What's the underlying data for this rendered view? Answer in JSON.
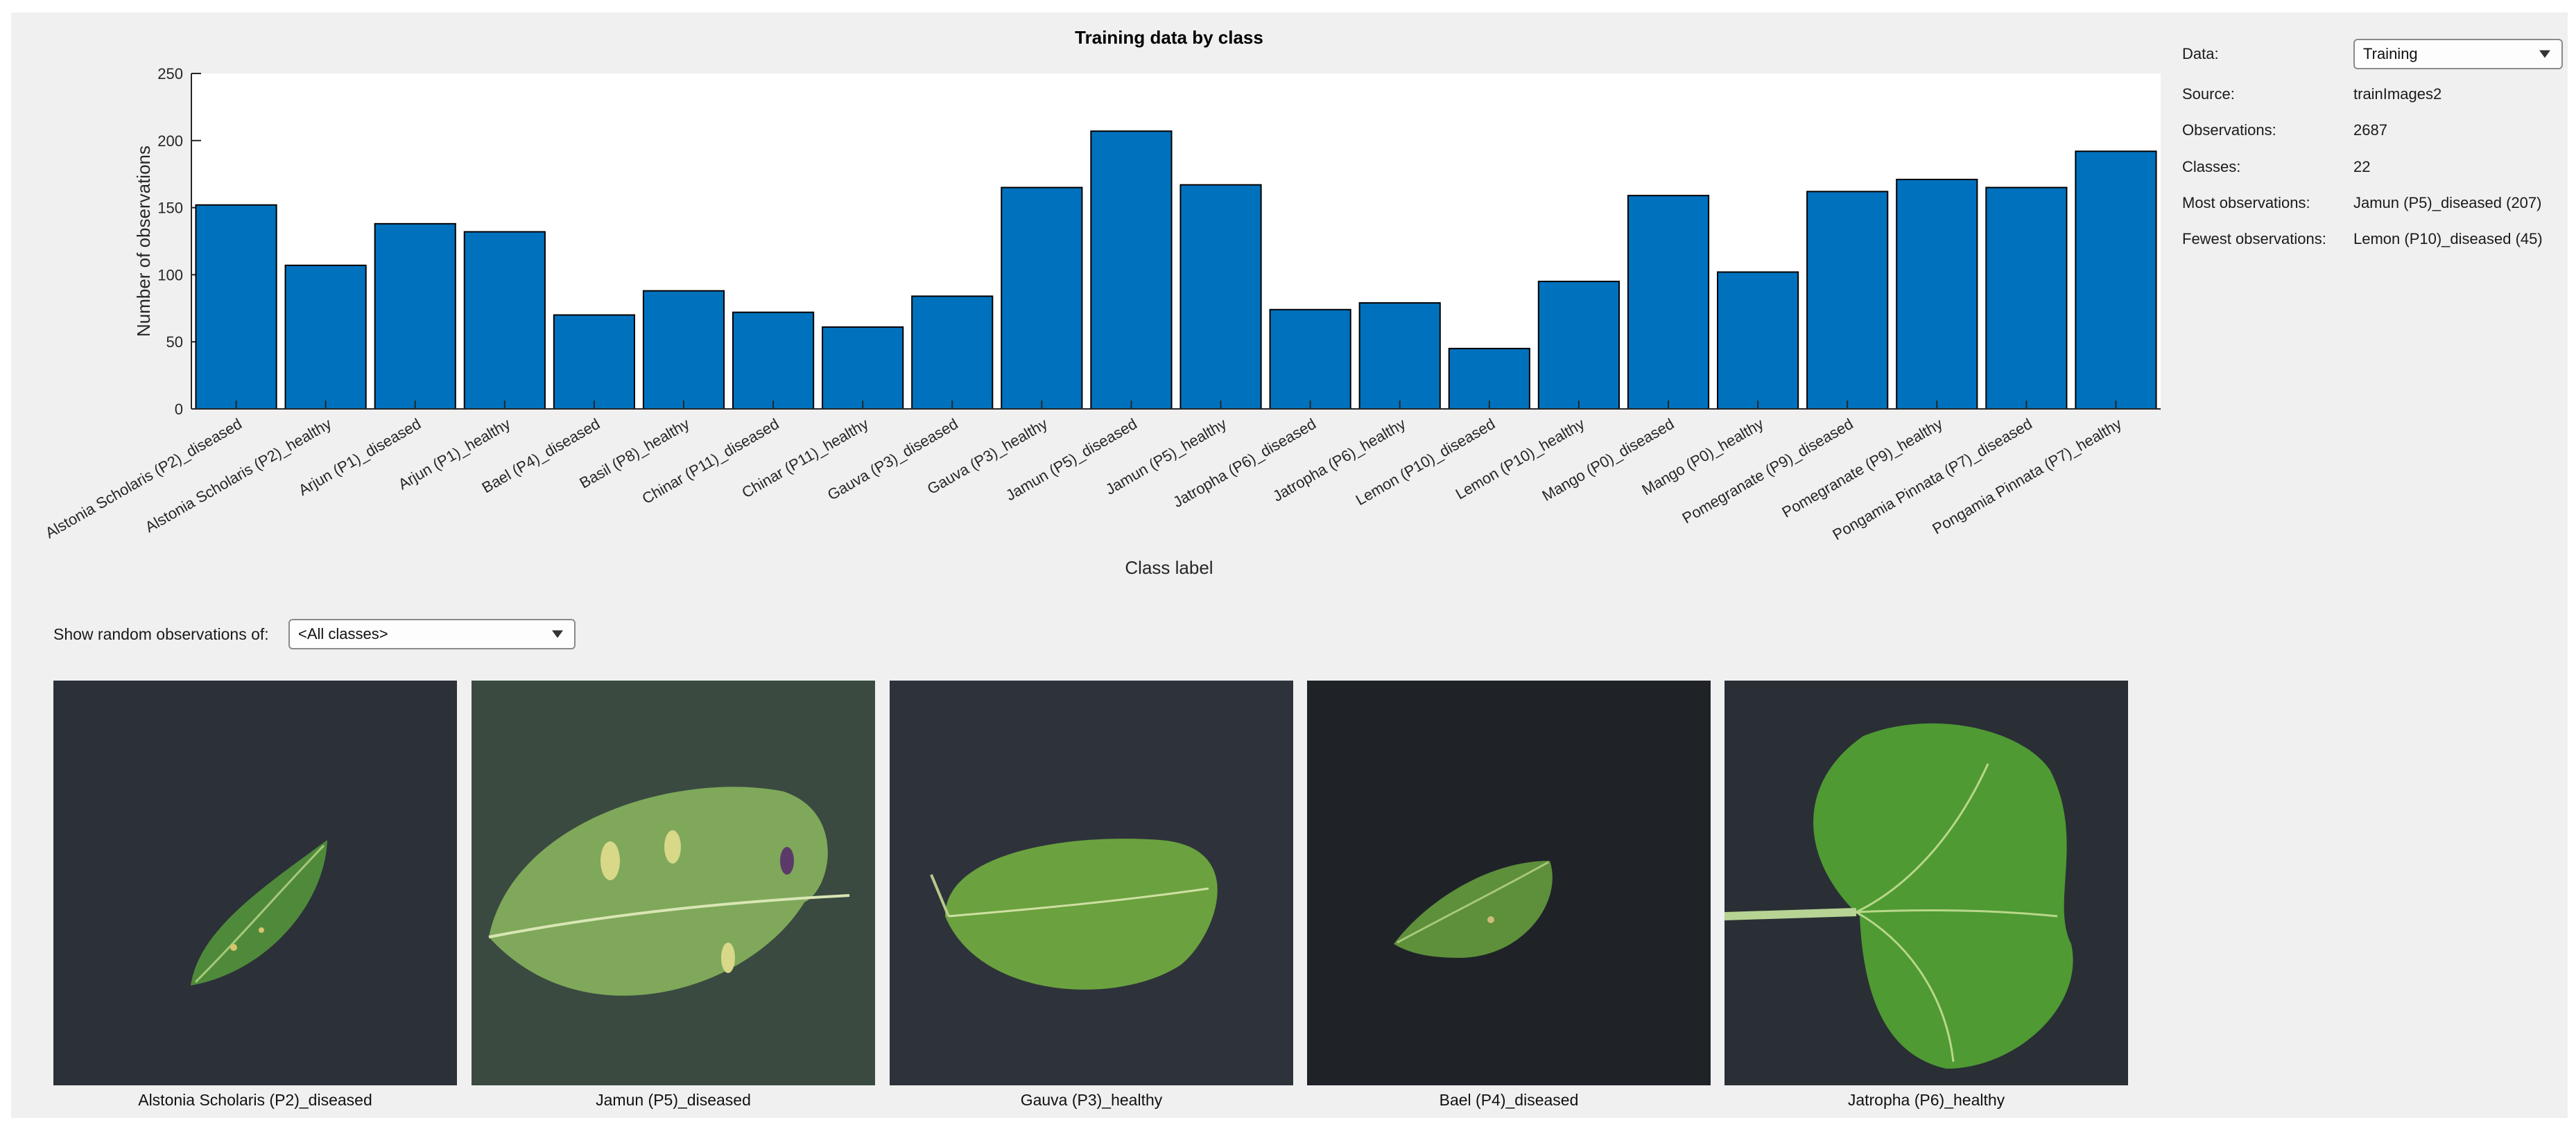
{
  "chart_data": {
    "type": "bar",
    "title": "Training data by class",
    "xlabel": "Class label",
    "ylabel": "Number of observations",
    "ylim": [
      0,
      250
    ],
    "yticks": [
      0,
      50,
      100,
      150,
      200,
      250
    ],
    "grid": false,
    "bar_color": "#0072bd",
    "categories": [
      "Alstonia Scholaris (P2)_diseased",
      "Alstonia Scholaris (P2)_healthy",
      "Arjun (P1)_diseased",
      "Arjun (P1)_healthy",
      "Bael (P4)_diseased",
      "Basil (P8)_healthy",
      "Chinar (P11)_diseased",
      "Chinar (P11)_healthy",
      "Gauva (P3)_diseased",
      "Gauva (P3)_healthy",
      "Jamun (P5)_diseased",
      "Jamun (P5)_healthy",
      "Jatropha (P6)_diseased",
      "Jatropha (P6)_healthy",
      "Lemon (P10)_diseased",
      "Lemon (P10)_healthy",
      "Mango (P0)_diseased",
      "Mango (P0)_healthy",
      "Pomegranate (P9)_diseased",
      "Pomegranate (P9)_healthy",
      "Pongamia Pinnata (P7)_diseased",
      "Pongamia Pinnata (P7)_healthy"
    ],
    "values": [
      152,
      107,
      138,
      132,
      70,
      88,
      72,
      61,
      84,
      165,
      207,
      167,
      74,
      79,
      45,
      95,
      159,
      102,
      162,
      171,
      165,
      192
    ]
  },
  "info": {
    "data_label": "Data:",
    "data_value": "Training",
    "source_label": "Source:",
    "source_value": "trainImages2",
    "observations_label": "Observations:",
    "observations_value": "2687",
    "classes_label": "Classes:",
    "classes_value": "22",
    "most_label": "Most observations:",
    "most_value": "Jamun (P5)_diseased (207)",
    "fewest_label": "Fewest observations:",
    "fewest_value": "Lemon (P10)_diseased (45)"
  },
  "browser": {
    "show_label": "Show random observations of:",
    "class_selected": "<All classes>"
  },
  "thumbnails": [
    {
      "caption": "Alstonia Scholaris (P2)_diseased",
      "icon": "leaf-image"
    },
    {
      "caption": "Jamun (P5)_diseased",
      "icon": "leaf-image"
    },
    {
      "caption": "Gauva (P3)_healthy",
      "icon": "leaf-image"
    },
    {
      "caption": "Bael (P4)_diseased",
      "icon": "leaf-image"
    },
    {
      "caption": "Jatropha (P6)_healthy",
      "icon": "leaf-image"
    }
  ]
}
